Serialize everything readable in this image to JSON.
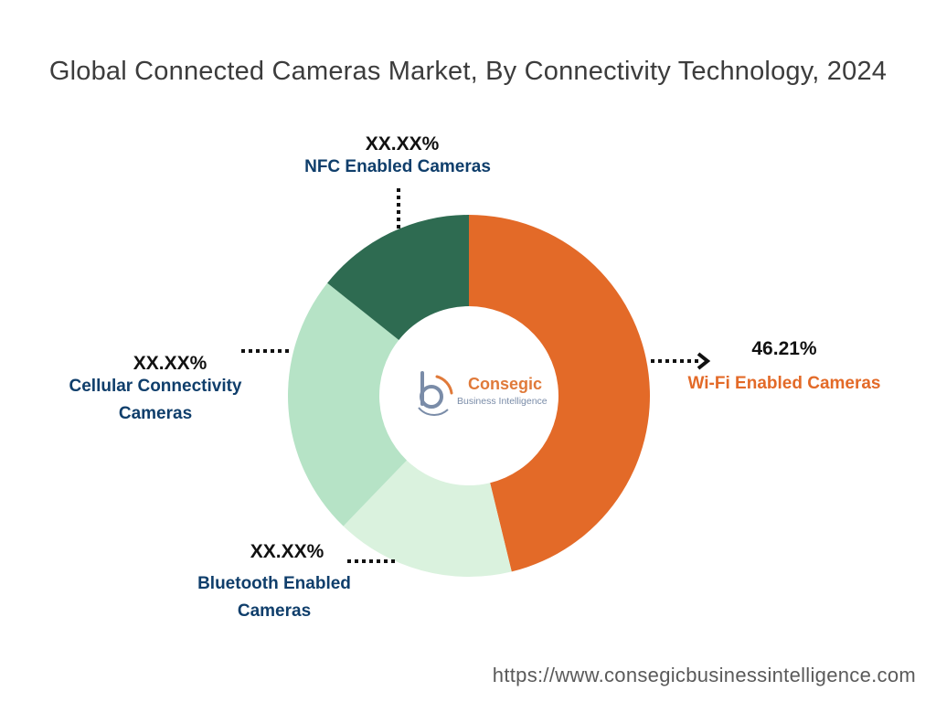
{
  "title": "Global Connected Cameras Market, By Connectivity Technology, 2024",
  "chart_data": {
    "type": "pie",
    "variant": "donut",
    "categories": [
      "Wi-Fi Enabled Cameras",
      "Bluetooth Enabled Cameras",
      "Cellular Connectivity Cameras",
      "NFC Enabled Cameras"
    ],
    "values": [
      46.21,
      16.0,
      23.5,
      14.3
    ],
    "value_labels": [
      "46.21%",
      "XX.XX%",
      "XX.XX%",
      "XX.XX%"
    ],
    "colors": [
      "#e36a28",
      "#daf2de",
      "#b6e3c6",
      "#2e6b51"
    ],
    "label_colors": [
      "#e36a28",
      "#0f3e6b",
      "#0f3e6b",
      "#0f3e6b"
    ],
    "start_angle_deg": 0,
    "direction": "clockwise"
  },
  "labels": {
    "wifi": {
      "pct": "46.21%",
      "name": "Wi-Fi Enabled Cameras"
    },
    "bluetooth": {
      "pct": "XX.XX%",
      "name_line1": "Bluetooth Enabled",
      "name_line2": "Cameras"
    },
    "cellular": {
      "pct": "XX.XX%",
      "name_line1": "Cellular Connectivity",
      "name_line2": "Cameras"
    },
    "nfc": {
      "pct": "XX.XX%",
      "name": "NFC Enabled Cameras"
    }
  },
  "logo": {
    "name": "Consegic",
    "subtitle": "Business Intelligence",
    "icon": "consegic-logo-icon"
  },
  "footer": {
    "url": "https://www.consegicbusinessintelligence.com"
  }
}
